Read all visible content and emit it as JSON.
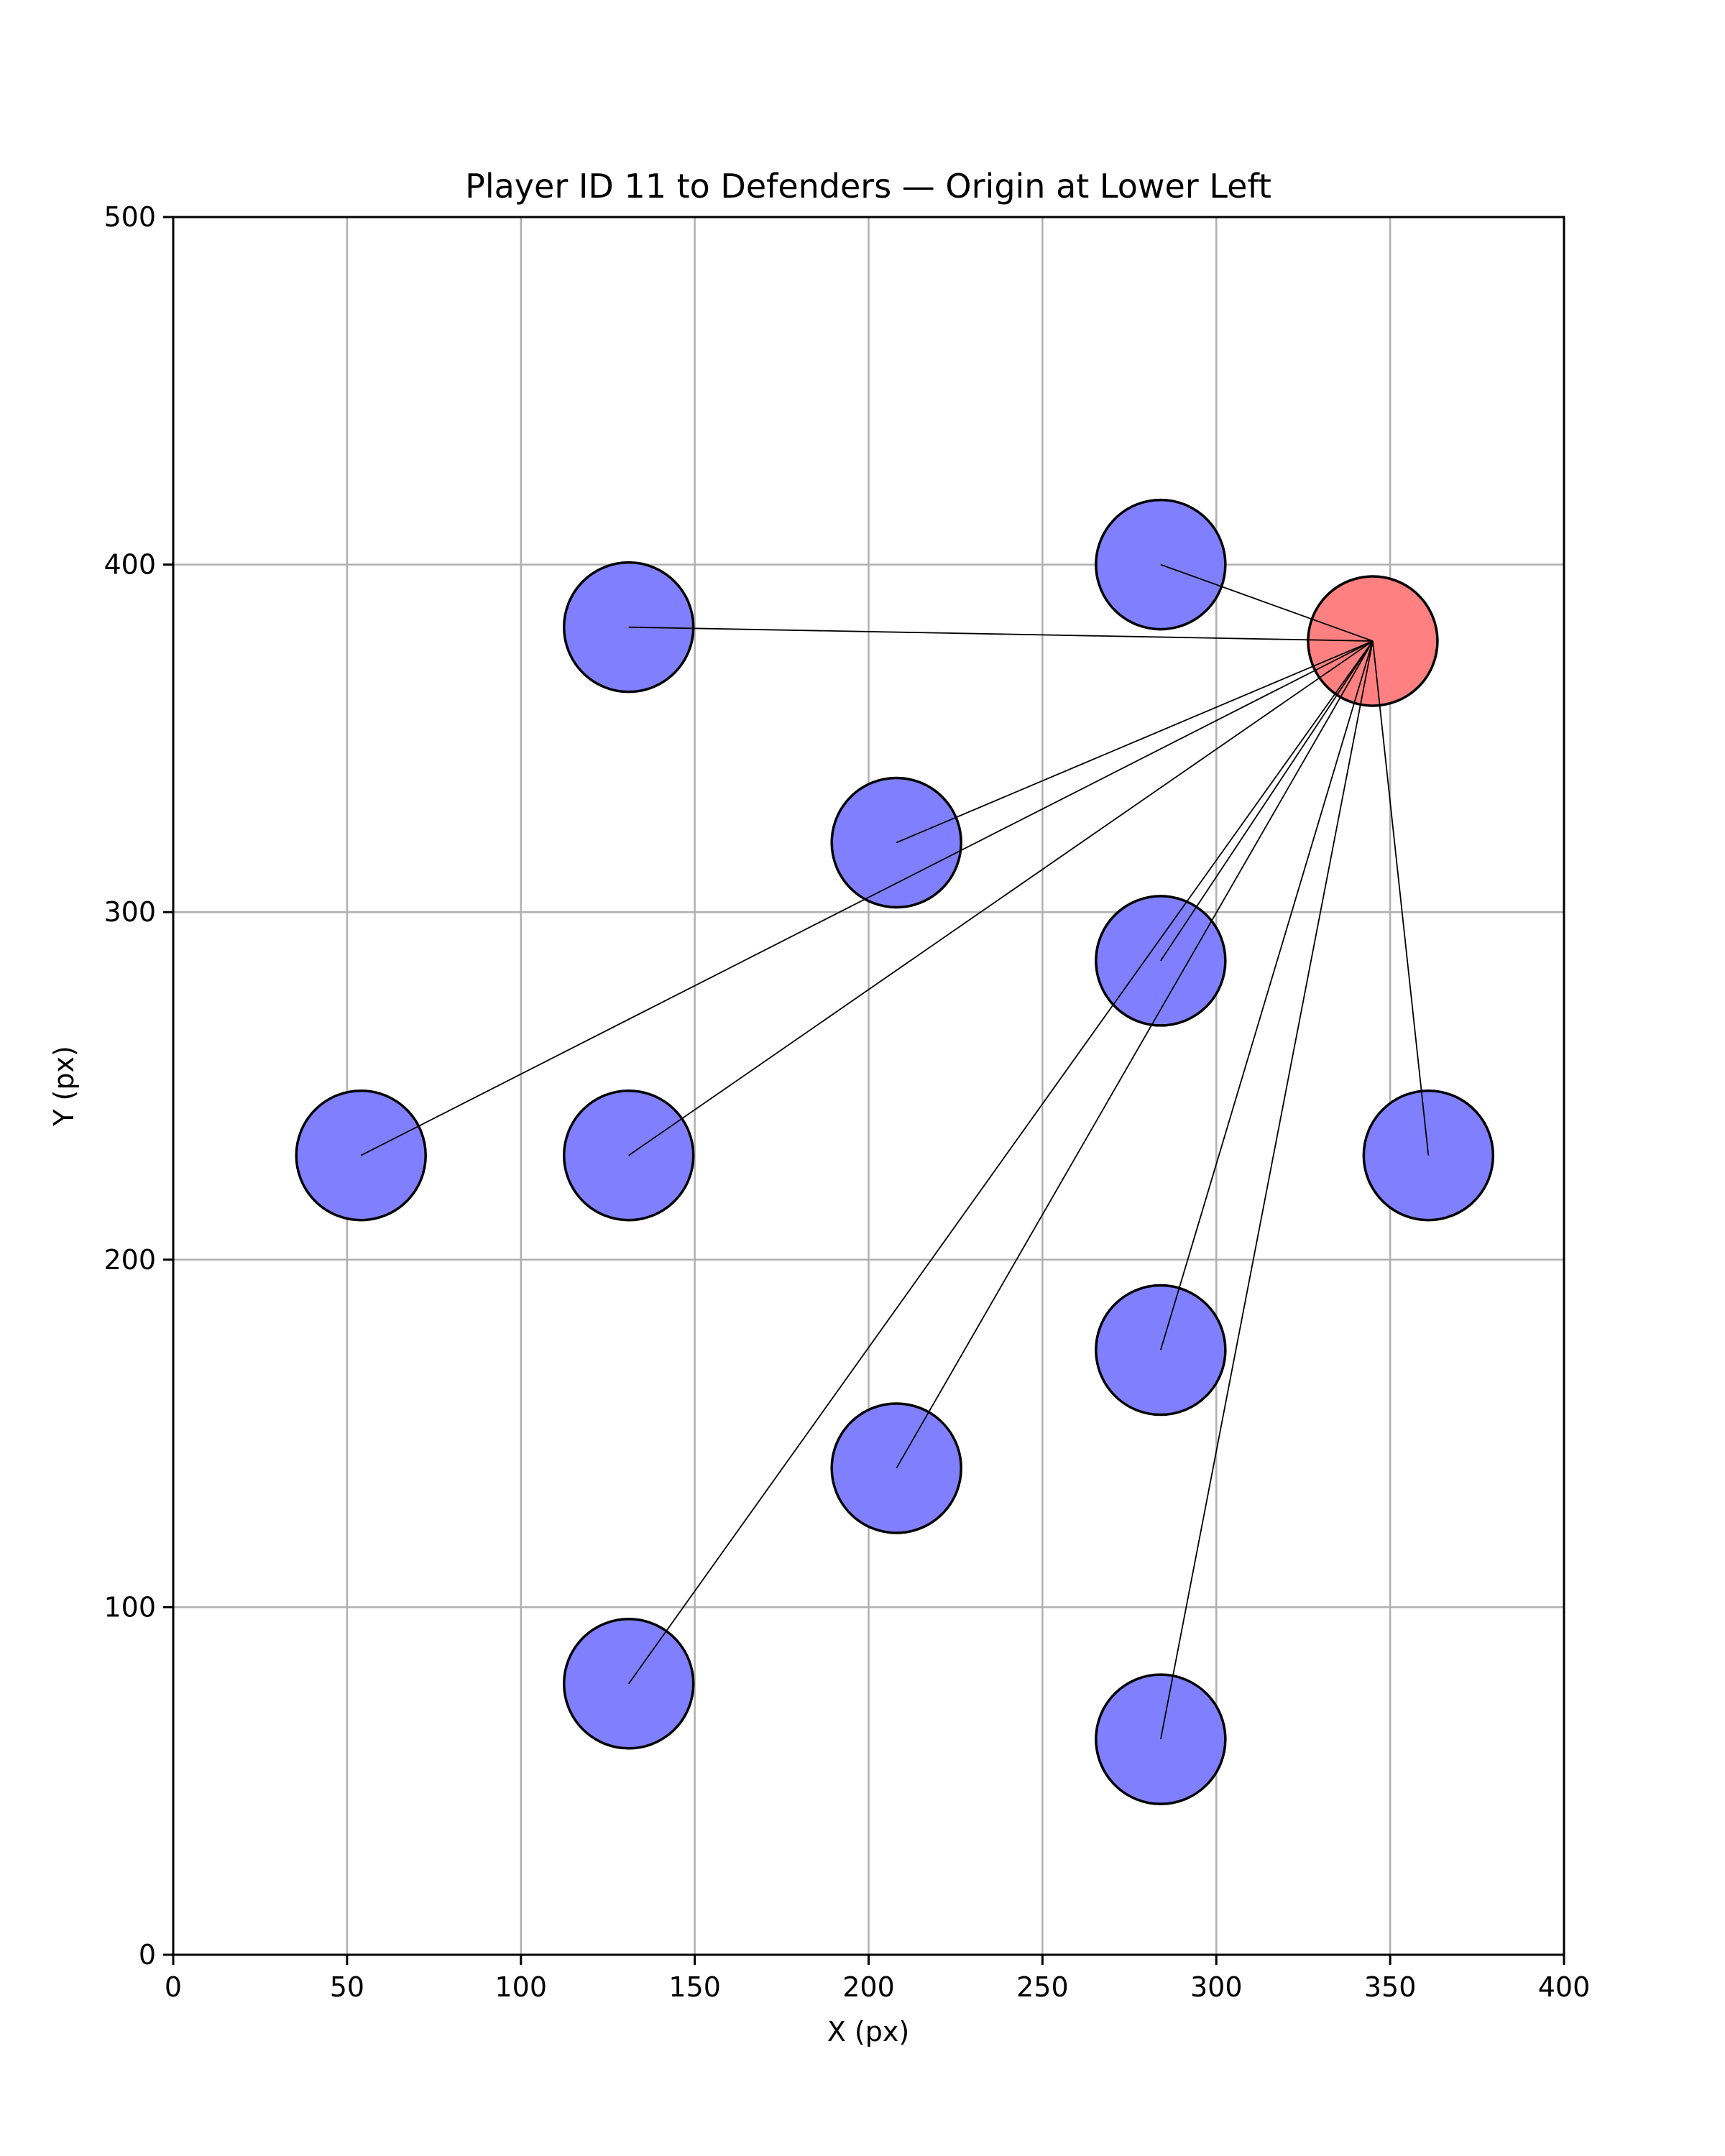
{
  "chart_data": {
    "type": "scatter",
    "title": "Player ID 11 to Defenders — Origin at Lower Left",
    "xlabel": "X (px)",
    "ylabel": "Y (px)",
    "xlim": [
      0,
      400
    ],
    "ylim": [
      0,
      500
    ],
    "xticks": [
      "0",
      "50",
      "100",
      "150",
      "200",
      "250",
      "300",
      "350",
      "400"
    ],
    "yticks": [
      "0",
      "100",
      "200",
      "300",
      "400",
      "500"
    ],
    "grid": true,
    "player": {
      "x": 345,
      "y": 378,
      "color": "#ff8080"
    },
    "defenders": [
      {
        "x": 284,
        "y": 400
      },
      {
        "x": 131,
        "y": 382
      },
      {
        "x": 208,
        "y": 320
      },
      {
        "x": 284,
        "y": 286
      },
      {
        "x": 54,
        "y": 230
      },
      {
        "x": 131,
        "y": 230
      },
      {
        "x": 361,
        "y": 230
      },
      {
        "x": 284,
        "y": 174
      },
      {
        "x": 208,
        "y": 140
      },
      {
        "x": 131,
        "y": 78
      },
      {
        "x": 284,
        "y": 62
      }
    ],
    "defender_color": "#8080ff",
    "edge_color": "#000000",
    "line_color": "#000000",
    "grid_color": "#b0b0b0"
  }
}
